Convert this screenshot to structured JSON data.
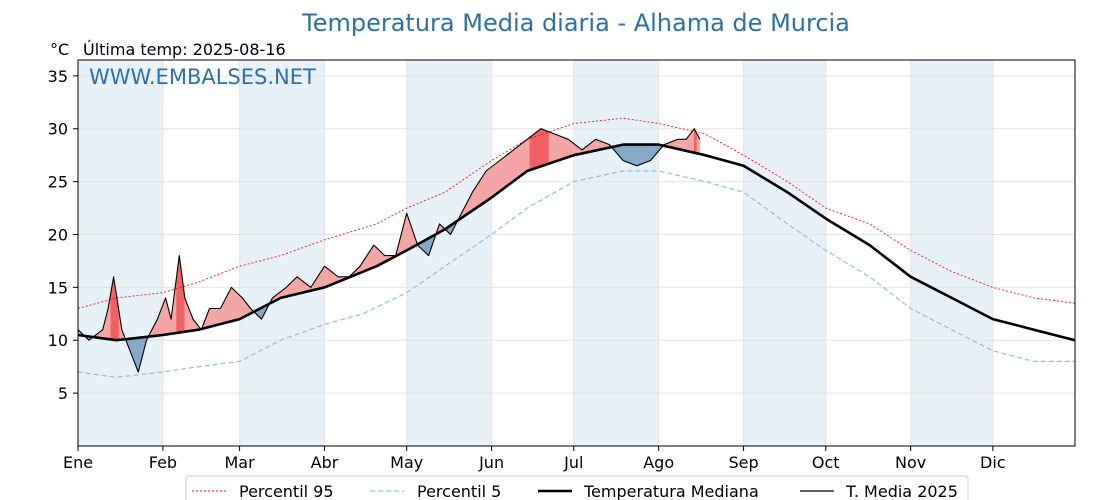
{
  "chart_data": {
    "type": "line",
    "title": "Temperatura Media diaria - Alhama de Murcia",
    "unit": "°C",
    "last_temp_label": "Última temp: 2025-08-16",
    "watermark": "WWW.EMBALSES.NET",
    "x_ticks": [
      "Ene",
      "Feb",
      "Mar",
      "Abr",
      "May",
      "Jun",
      "Jul",
      "Ago",
      "Sep",
      "Oct",
      "Nov",
      "Dic"
    ],
    "month_lengths": [
      31,
      28,
      31,
      30,
      31,
      30,
      31,
      31,
      30,
      31,
      30,
      31
    ],
    "y_ticks": [
      5,
      10,
      15,
      20,
      25,
      30,
      35
    ],
    "ylim": [
      0,
      36.5
    ],
    "xlim": [
      1,
      365
    ],
    "grid": true,
    "legend_position": "bottom",
    "colors": {
      "p95": "#e8161b",
      "p5": "#86c3dc",
      "median": "#000000",
      "current": "#000000",
      "warm_fill": "#f4a6a6",
      "warm_fill_strong": "#f06262",
      "cool_fill": "#85a9c9",
      "cool_fill_strong": "#2d5f8c",
      "band": "#e8f0f8",
      "title": "#2e6fa6"
    },
    "series": [
      {
        "name": "Percentil 95",
        "style": "dashed",
        "points": [
          [
            1,
            13
          ],
          [
            15,
            14
          ],
          [
            32,
            14.5
          ],
          [
            45,
            15.5
          ],
          [
            60,
            17
          ],
          [
            75,
            18
          ],
          [
            91,
            19.5
          ],
          [
            110,
            21
          ],
          [
            121,
            22.5
          ],
          [
            135,
            24
          ],
          [
            152,
            27
          ],
          [
            165,
            29
          ],
          [
            182,
            30.5
          ],
          [
            200,
            31
          ],
          [
            213,
            30.5
          ],
          [
            230,
            29.5
          ],
          [
            244,
            27.5
          ],
          [
            260,
            25
          ],
          [
            274,
            22.5
          ],
          [
            290,
            21
          ],
          [
            305,
            18.5
          ],
          [
            320,
            16.5
          ],
          [
            335,
            15
          ],
          [
            350,
            14
          ],
          [
            365,
            13.5
          ]
        ]
      },
      {
        "name": "Percentil 5",
        "style": "dashed",
        "points": [
          [
            1,
            7
          ],
          [
            15,
            6.5
          ],
          [
            32,
            7
          ],
          [
            45,
            7.5
          ],
          [
            60,
            8
          ],
          [
            75,
            10
          ],
          [
            91,
            11.5
          ],
          [
            105,
            12.5
          ],
          [
            121,
            14.5
          ],
          [
            135,
            17
          ],
          [
            152,
            20
          ],
          [
            165,
            22.5
          ],
          [
            182,
            25
          ],
          [
            200,
            26
          ],
          [
            213,
            26
          ],
          [
            230,
            25
          ],
          [
            244,
            24
          ],
          [
            260,
            21
          ],
          [
            274,
            18.5
          ],
          [
            290,
            16
          ],
          [
            305,
            13
          ],
          [
            320,
            11
          ],
          [
            335,
            9
          ],
          [
            350,
            8
          ],
          [
            365,
            8
          ]
        ]
      },
      {
        "name": "Temperatura Mediana",
        "style": "solid-thick",
        "points": [
          [
            1,
            10.5
          ],
          [
            15,
            10
          ],
          [
            32,
            10.5
          ],
          [
            45,
            11
          ],
          [
            60,
            12
          ],
          [
            75,
            14
          ],
          [
            91,
            15
          ],
          [
            110,
            17
          ],
          [
            121,
            18.5
          ],
          [
            135,
            20.5
          ],
          [
            152,
            23.5
          ],
          [
            165,
            26
          ],
          [
            182,
            27.5
          ],
          [
            200,
            28.5
          ],
          [
            213,
            28.5
          ],
          [
            230,
            27.5
          ],
          [
            244,
            26.5
          ],
          [
            260,
            24
          ],
          [
            274,
            21.5
          ],
          [
            290,
            19
          ],
          [
            305,
            16
          ],
          [
            320,
            14
          ],
          [
            335,
            12
          ],
          [
            350,
            11
          ],
          [
            365,
            10
          ]
        ]
      },
      {
        "name": "T. Media 2025",
        "style": "solid-thin",
        "points": [
          [
            1,
            11
          ],
          [
            5,
            10
          ],
          [
            10,
            11
          ],
          [
            12,
            13
          ],
          [
            14,
            16
          ],
          [
            17,
            11
          ],
          [
            20,
            9
          ],
          [
            23,
            7
          ],
          [
            26,
            10
          ],
          [
            30,
            12
          ],
          [
            33,
            14
          ],
          [
            35,
            12
          ],
          [
            38,
            18
          ],
          [
            40,
            14
          ],
          [
            43,
            12
          ],
          [
            46,
            11
          ],
          [
            49,
            13
          ],
          [
            53,
            13
          ],
          [
            57,
            15
          ],
          [
            61,
            14
          ],
          [
            64,
            13
          ],
          [
            68,
            12
          ],
          [
            72,
            14
          ],
          [
            77,
            15
          ],
          [
            81,
            16
          ],
          [
            86,
            15
          ],
          [
            91,
            17
          ],
          [
            96,
            16
          ],
          [
            100,
            16
          ],
          [
            104,
            17
          ],
          [
            109,
            19
          ],
          [
            113,
            18
          ],
          [
            117,
            18
          ],
          [
            121,
            22
          ],
          [
            125,
            19
          ],
          [
            129,
            18
          ],
          [
            133,
            21
          ],
          [
            137,
            20
          ],
          [
            141,
            22
          ],
          [
            145,
            24
          ],
          [
            150,
            26
          ],
          [
            155,
            27
          ],
          [
            160,
            28
          ],
          [
            165,
            29
          ],
          [
            170,
            30
          ],
          [
            175,
            29.5
          ],
          [
            180,
            29
          ],
          [
            185,
            28
          ],
          [
            190,
            29
          ],
          [
            195,
            28.5
          ],
          [
            200,
            27
          ],
          [
            205,
            26.5
          ],
          [
            210,
            27
          ],
          [
            215,
            28.5
          ],
          [
            220,
            29
          ],
          [
            223,
            29
          ],
          [
            226,
            30
          ],
          [
            228,
            29
          ]
        ]
      }
    ]
  }
}
